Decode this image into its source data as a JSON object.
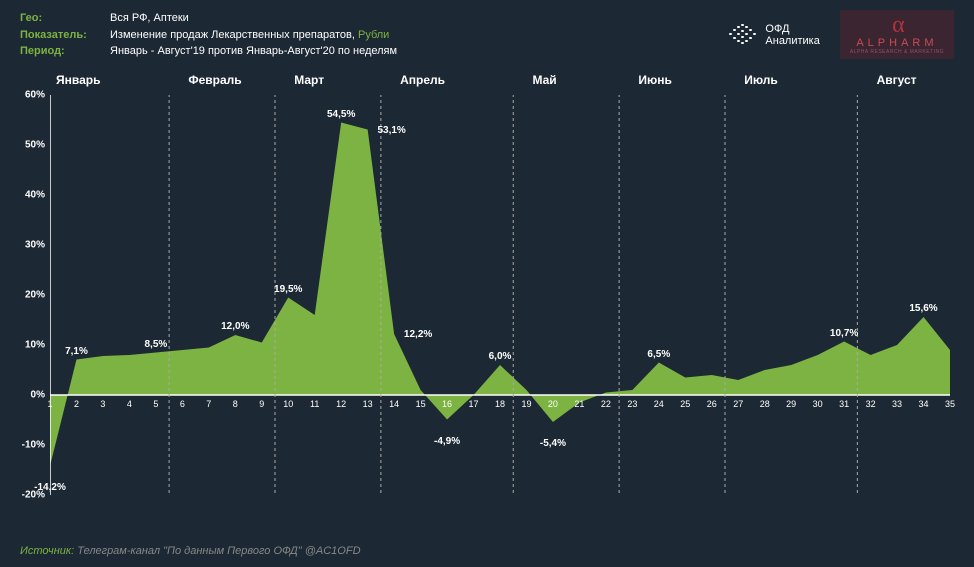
{
  "meta": {
    "geo_label": "Гео:",
    "geo_value": "Вся РФ, Аптеки",
    "indicator_label": "Показатель:",
    "indicator_value_pre": "Изменение продаж Лекарственных препаратов, ",
    "indicator_value_accent": "Рубли",
    "period_label": "Период:",
    "period_value": "Январь - Август'19 против Январь-Август'20 по неделям"
  },
  "logos": {
    "ofd_line1": "ОФД",
    "ofd_line2": "Аналитика",
    "alpharm_name": "ALPHARM",
    "alpharm_sub": "ALPHA RESEARCH & MARKETING"
  },
  "chart": {
    "type": "area",
    "background_color": "#1c2833",
    "series_color": "#7cb342",
    "axis_color": "#ffffff",
    "grid_color": "#3a4a5a",
    "divider_color": "#aaaaaa",
    "label_fontsize": 10,
    "month_fontsize": 12,
    "ylim": [
      -20,
      60
    ],
    "yticks": [
      -20,
      -10,
      0,
      10,
      20,
      30,
      40,
      50,
      60
    ],
    "ytick_labels": [
      "-20%",
      "-10%",
      "0%",
      "10%",
      "20%",
      "30%",
      "40%",
      "50%",
      "60%"
    ],
    "months": [
      {
        "label": "Январь",
        "start_week": 1
      },
      {
        "label": "Февраль",
        "start_week": 6
      },
      {
        "label": "Март",
        "start_week": 10
      },
      {
        "label": "Апрель",
        "start_week": 14
      },
      {
        "label": "Май",
        "start_week": 19
      },
      {
        "label": "Июнь",
        "start_week": 23
      },
      {
        "label": "Июль",
        "start_week": 27
      },
      {
        "label": "Август",
        "start_week": 32
      }
    ],
    "dividers_after_week": [
      5,
      9,
      13,
      18,
      22,
      26,
      31
    ],
    "weeks": [
      1,
      2,
      3,
      4,
      5,
      6,
      7,
      8,
      9,
      10,
      11,
      12,
      13,
      14,
      15,
      16,
      17,
      18,
      19,
      20,
      21,
      22,
      23,
      24,
      25,
      26,
      27,
      28,
      29,
      30,
      31,
      32,
      33,
      34,
      35
    ],
    "values": [
      -14.2,
      7.1,
      7.8,
      8.0,
      8.5,
      9.0,
      9.5,
      12.0,
      10.5,
      19.5,
      16.0,
      54.5,
      53.1,
      12.2,
      1.0,
      -4.9,
      0.0,
      6.0,
      1.0,
      -5.4,
      -1.5,
      0.5,
      1.0,
      6.5,
      3.5,
      4.0,
      3.0,
      5.0,
      6.0,
      8.0,
      10.7,
      8.0,
      10.0,
      15.6,
      9.0
    ],
    "callouts": [
      {
        "week": 1,
        "value": -14.2,
        "text": "-14,2%",
        "pos": "below"
      },
      {
        "week": 2,
        "value": 7.1,
        "text": "7,1%",
        "pos": "above"
      },
      {
        "week": 5,
        "value": 8.5,
        "text": "8,5%",
        "pos": "above"
      },
      {
        "week": 8,
        "value": 12.0,
        "text": "12,0%",
        "pos": "above"
      },
      {
        "week": 10,
        "value": 19.5,
        "text": "19,5%",
        "pos": "above"
      },
      {
        "week": 12,
        "value": 54.5,
        "text": "54,5%",
        "pos": "above"
      },
      {
        "week": 13,
        "value": 53.1,
        "text": "53,1%",
        "pos": "right"
      },
      {
        "week": 14,
        "value": 12.2,
        "text": "12,2%",
        "pos": "right"
      },
      {
        "week": 16,
        "value": -4.9,
        "text": "-4,9%",
        "pos": "below"
      },
      {
        "week": 18,
        "value": 6.0,
        "text": "6,0%",
        "pos": "above"
      },
      {
        "week": 20,
        "value": -5.4,
        "text": "-5,4%",
        "pos": "below"
      },
      {
        "week": 24,
        "value": 6.5,
        "text": "6,5%",
        "pos": "above"
      },
      {
        "week": 31,
        "value": 10.7,
        "text": "10,7%",
        "pos": "above"
      },
      {
        "week": 34,
        "value": 15.6,
        "text": "15,6%",
        "pos": "above"
      }
    ]
  },
  "footer": {
    "source_label": "Источник:",
    "source_text": " Телеграм-канал \"По данным Первого ОФД\" @AC1OFD"
  }
}
